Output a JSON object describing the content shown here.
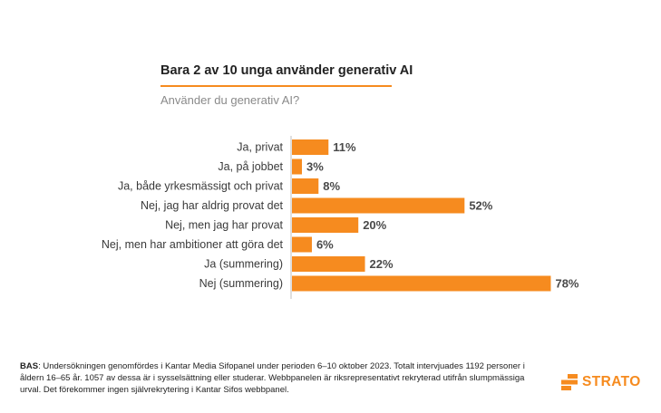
{
  "title": "Bara 2 av 10 unga använder generativ AI",
  "subtitle": "Använder du generativ AI?",
  "colors": {
    "bar": "#F68B1F",
    "accent": "#F68B1F",
    "axis": "#bfbfbf"
  },
  "chart_data": {
    "type": "bar",
    "orientation": "horizontal",
    "title": "Bara 2 av 10 unga använder generativ AI",
    "subtitle": "Använder du generativ AI?",
    "categories": [
      "Ja, privat",
      "Ja, på jobbet",
      "Ja, både yrkesmässigt och privat",
      "Nej, jag har aldrig provat det",
      "Nej, men jag har provat",
      "Nej, men har ambitioner att göra det",
      "Ja (summering)",
      "Nej (summering)"
    ],
    "values": [
      11,
      3,
      8,
      52,
      20,
      6,
      22,
      78
    ],
    "value_labels": [
      "11%",
      "3%",
      "8%",
      "52%",
      "20%",
      "6%",
      "22%",
      "78%"
    ],
    "xlim": [
      0,
      100
    ],
    "grid": false,
    "legend": "none"
  },
  "footnote": {
    "bold": "BAS",
    "text": ": Undersökningen genomfördes i Kantar Media Sifopanel under perioden 6–10 oktober 2023. Totalt intervjuades 1192 personer i åldern 16–65 år. 1057 av dessa är i sysselsättning eller studerar. Webbpanelen är riksrepresentativt rekryterad utifrån slumpmässiga urval. Det förekommer ingen självrekrytering i Kantar Sifos webbpanel."
  },
  "logo": {
    "text": "STRATO",
    "icon": "strato-logo-icon"
  }
}
